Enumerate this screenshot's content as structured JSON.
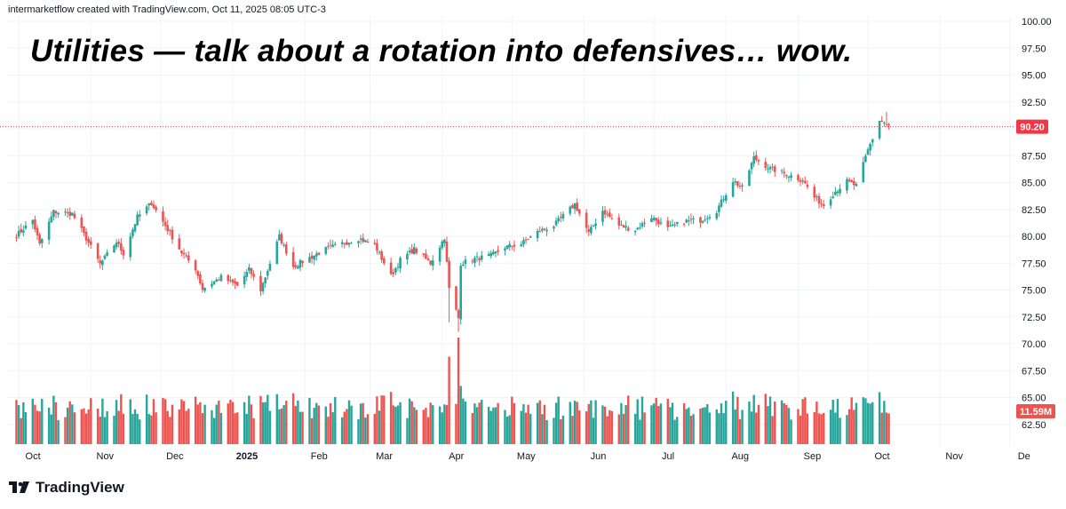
{
  "header": {
    "attribution": "intermarketflow created with TradingView.com, Oct 11, 2025 08:05 UTC-3"
  },
  "branding": {
    "name": "TradingView",
    "logo_icon": "tradingview-logo-icon"
  },
  "colors": {
    "up": "#26a69a",
    "down": "#ef5350",
    "price_line": "#f23645",
    "badge": "#f23645",
    "volume_badge": "#ef5350"
  },
  "chart_data": {
    "type": "candlestick",
    "title": "Utilities — talk about a rotation into defensives… wow.",
    "y_axis": {
      "range": [
        60.5,
        100.5
      ],
      "ticks": [
        "100.00",
        "97.50",
        "95.00",
        "92.50",
        "90.00",
        "87.50",
        "85.00",
        "82.50",
        "80.00",
        "77.50",
        "75.00",
        "72.50",
        "70.00",
        "67.50",
        "65.00",
        "62.50"
      ]
    },
    "x_axis": {
      "labels": [
        {
          "text": "Oct",
          "bold": false
        },
        {
          "text": "Nov",
          "bold": false
        },
        {
          "text": "Dec",
          "bold": false
        },
        {
          "text": "2025",
          "bold": true
        },
        {
          "text": "Feb",
          "bold": false
        },
        {
          "text": "Mar",
          "bold": false
        },
        {
          "text": "Apr",
          "bold": false
        },
        {
          "text": "May",
          "bold": false
        },
        {
          "text": "Jun",
          "bold": false
        },
        {
          "text": "Jul",
          "bold": false
        },
        {
          "text": "Aug",
          "bold": false
        },
        {
          "text": "Sep",
          "bold": false
        },
        {
          "text": "Oct",
          "bold": false
        },
        {
          "text": "Nov",
          "bold": false
        },
        {
          "text": "De",
          "bold": false
        }
      ]
    },
    "last_price": {
      "value": 90.2,
      "label": "90.20"
    },
    "last_volume": {
      "label": "11.59M"
    },
    "close_path_anchors": [
      [
        "2024-09-30",
        80.1
      ],
      [
        "2024-10-07",
        81.5
      ],
      [
        "2024-10-10",
        79.2
      ],
      [
        "2024-10-16",
        82.3
      ],
      [
        "2024-10-24",
        82.1
      ],
      [
        "2024-10-30",
        79.8
      ],
      [
        "2024-11-05",
        77.4
      ],
      [
        "2024-11-12",
        79.5
      ],
      [
        "2024-11-15",
        78.4
      ],
      [
        "2024-11-21",
        81.8
      ],
      [
        "2024-11-27",
        83.1
      ],
      [
        "2024-12-03",
        81.0
      ],
      [
        "2024-12-10",
        78.5
      ],
      [
        "2024-12-16",
        77.0
      ],
      [
        "2024-12-19",
        75.1
      ],
      [
        "2024-12-27",
        76.2
      ],
      [
        "2025-01-03",
        75.4
      ],
      [
        "2025-01-08",
        76.9
      ],
      [
        "2025-01-13",
        75.0
      ],
      [
        "2025-01-21",
        80.0
      ],
      [
        "2025-01-27",
        77.2
      ],
      [
        "2025-02-03",
        78.0
      ],
      [
        "2025-02-10",
        78.8
      ],
      [
        "2025-02-18",
        79.4
      ],
      [
        "2025-02-24",
        79.8
      ],
      [
        "2025-03-03",
        79.2
      ],
      [
        "2025-03-10",
        76.3
      ],
      [
        "2025-03-14",
        77.8
      ],
      [
        "2025-03-20",
        78.8
      ],
      [
        "2025-03-27",
        77.5
      ],
      [
        "2025-04-02",
        79.9
      ],
      [
        "2025-04-04",
        75.1
      ],
      [
        "2025-04-08",
        72.4
      ],
      [
        "2025-04-09",
        77.5
      ],
      [
        "2025-04-15",
        77.9
      ],
      [
        "2025-04-22",
        78.2
      ],
      [
        "2025-04-28",
        79.0
      ],
      [
        "2025-05-05",
        79.3
      ],
      [
        "2025-05-12",
        80.4
      ],
      [
        "2025-05-19",
        81.0
      ],
      [
        "2025-05-28",
        83.0
      ],
      [
        "2025-06-03",
        80.3
      ],
      [
        "2025-06-09",
        82.4
      ],
      [
        "2025-06-16",
        81.0
      ],
      [
        "2025-06-23",
        80.6
      ],
      [
        "2025-06-30",
        81.8
      ],
      [
        "2025-07-07",
        80.7
      ],
      [
        "2025-07-14",
        81.4
      ],
      [
        "2025-07-21",
        81.5
      ],
      [
        "2025-07-28",
        82.4
      ],
      [
        "2025-08-04",
        85.2
      ],
      [
        "2025-08-08",
        84.5
      ],
      [
        "2025-08-13",
        87.3
      ],
      [
        "2025-08-20",
        86.3
      ],
      [
        "2025-08-27",
        85.8
      ],
      [
        "2025-09-03",
        85.2
      ],
      [
        "2025-09-08",
        83.6
      ],
      [
        "2025-09-12",
        82.9
      ],
      [
        "2025-09-17",
        84.2
      ],
      [
        "2025-09-22",
        85.1
      ],
      [
        "2025-09-26",
        84.7
      ],
      [
        "2025-10-01",
        88.0
      ],
      [
        "2025-10-06",
        90.8
      ],
      [
        "2025-10-08",
        90.6
      ],
      [
        "2025-10-10",
        90.2
      ]
    ],
    "notable_bars": [
      {
        "date": "2025-04-04",
        "low": 72.0,
        "volume_rel": 0.82
      },
      {
        "date": "2025-04-08",
        "low": 71.1,
        "volume_rel": 1.0
      },
      {
        "date": "2025-10-09",
        "high": 91.6
      }
    ]
  }
}
